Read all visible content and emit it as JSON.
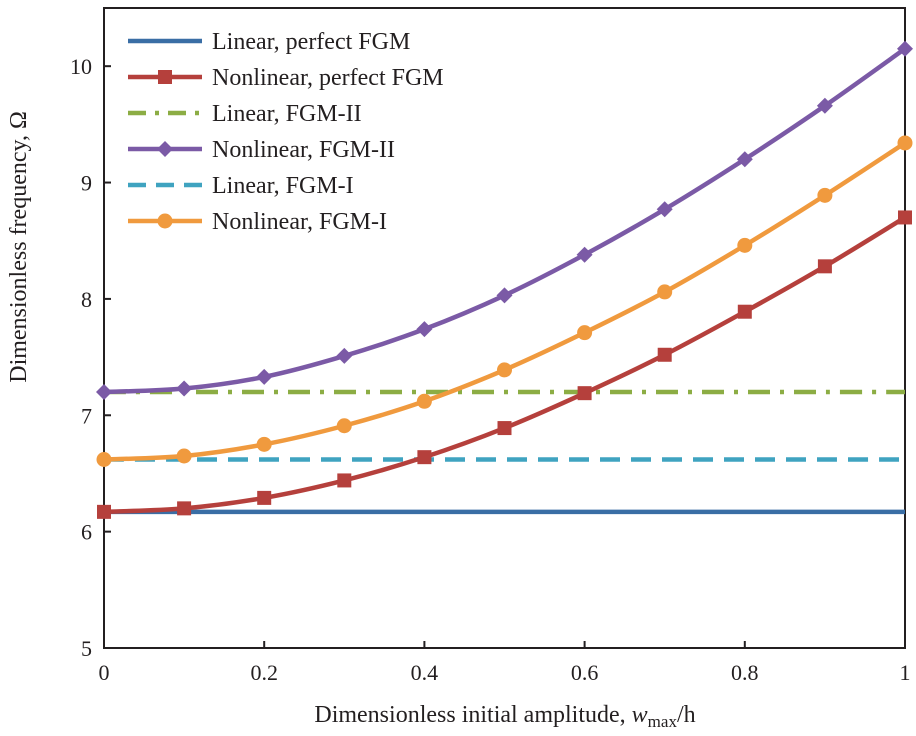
{
  "chart_data": {
    "type": "line",
    "title": "",
    "xlabel_prefix": "Dimensionless initial amplitude, ",
    "xlabel_var": "w",
    "xlabel_sub": "max",
    "xlabel_suffix": "/h",
    "ylabel": "Dimensionless frequency, Ω",
    "xlim": [
      0,
      1
    ],
    "ylim": [
      5,
      10.5
    ],
    "x_ticks": [
      0,
      0.2,
      0.4,
      0.6,
      0.8,
      1
    ],
    "x_tick_labels": [
      "0",
      "0.2",
      "0.4",
      "0.6",
      "0.8",
      "1"
    ],
    "y_ticks": [
      5,
      6,
      7,
      8,
      9,
      10
    ],
    "y_tick_labels": [
      "5",
      "6",
      "7",
      "8",
      "9",
      "10"
    ],
    "grid": false,
    "legend_position": "top-left",
    "x": [
      0,
      0.1,
      0.2,
      0.3,
      0.4,
      0.5,
      0.6,
      0.7,
      0.8,
      0.9,
      1.0
    ],
    "series": [
      {
        "name": "Linear, perfect FGM",
        "color": "#3a6ea5",
        "style": "solid",
        "marker": "none",
        "values": [
          6.17,
          6.17,
          6.17,
          6.17,
          6.17,
          6.17,
          6.17,
          6.17,
          6.17,
          6.17,
          6.17
        ]
      },
      {
        "name": "Nonlinear, perfect FGM",
        "color": "#b5403c",
        "style": "solid",
        "marker": "square",
        "values": [
          6.17,
          6.2,
          6.29,
          6.44,
          6.64,
          6.89,
          7.19,
          7.52,
          7.89,
          8.28,
          8.7
        ]
      },
      {
        "name": "Linear,  FGM-II",
        "color": "#8cad44",
        "style": "dashdot",
        "marker": "none",
        "values": [
          7.2,
          7.2,
          7.2,
          7.2,
          7.2,
          7.2,
          7.2,
          7.2,
          7.2,
          7.2,
          7.2
        ]
      },
      {
        "name": "Nonlinear, FGM-II",
        "color": "#7b5aa6",
        "style": "solid",
        "marker": "diamond",
        "values": [
          7.2,
          7.23,
          7.33,
          7.51,
          7.74,
          8.03,
          8.38,
          8.77,
          9.2,
          9.66,
          10.15
        ]
      },
      {
        "name": "Linear,  FGM-I",
        "color": "#3fa3c0",
        "style": "dashed",
        "marker": "none",
        "values": [
          6.62,
          6.62,
          6.62,
          6.62,
          6.62,
          6.62,
          6.62,
          6.62,
          6.62,
          6.62,
          6.62
        ]
      },
      {
        "name": "Nonlinear, FGM-I",
        "color": "#f09a3e",
        "style": "solid",
        "marker": "circle",
        "values": [
          6.62,
          6.65,
          6.75,
          6.91,
          7.12,
          7.39,
          7.71,
          8.06,
          8.46,
          8.89,
          9.34
        ]
      }
    ]
  }
}
